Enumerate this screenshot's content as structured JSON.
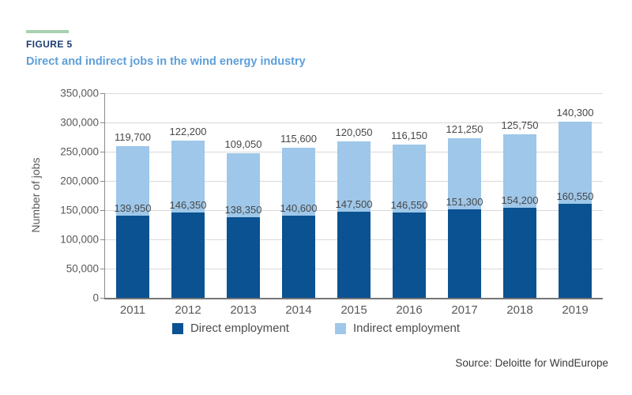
{
  "figure": {
    "label": "FIGURE 5",
    "title": "Direct and indirect jobs in the wind energy industry",
    "accent_color": "#a7d1b0",
    "label_color": "#1c3c6e",
    "title_color": "#5e9fd9"
  },
  "chart_data": {
    "type": "bar",
    "stacked": true,
    "title": "Direct and indirect jobs in the wind energy industry",
    "xlabel": "",
    "ylabel": "Number of jobs",
    "ylim": [
      0,
      350000
    ],
    "ytick_step": 50000,
    "yticks": [
      "0",
      "50,000",
      "100,000",
      "150,000",
      "200,000",
      "250,000",
      "300,000",
      "350,000"
    ],
    "grid": true,
    "legend_position": "bottom",
    "categories": [
      "2011",
      "2012",
      "2013",
      "2014",
      "2015",
      "2016",
      "2017",
      "2018",
      "2019"
    ],
    "series": [
      {
        "name": "Direct employment",
        "color": "#0a5291",
        "values": [
          139950,
          146350,
          138350,
          140600,
          147500,
          146550,
          151300,
          154200,
          160550
        ],
        "labels": [
          "139,950",
          "146,350",
          "138,350",
          "140,600",
          "147,500",
          "146,550",
          "151,300",
          "154,200",
          "160,550"
        ]
      },
      {
        "name": "Indirect employment",
        "color": "#9ec7e9",
        "values": [
          119700,
          122200,
          109050,
          115600,
          120050,
          116150,
          121250,
          125750,
          140300
        ],
        "labels": [
          "119,700",
          "122,200",
          "109,050",
          "115,600",
          "120,050",
          "116,150",
          "121,250",
          "125,750",
          "140,300"
        ]
      }
    ]
  },
  "source": "Source: Deloitte for WindEurope"
}
